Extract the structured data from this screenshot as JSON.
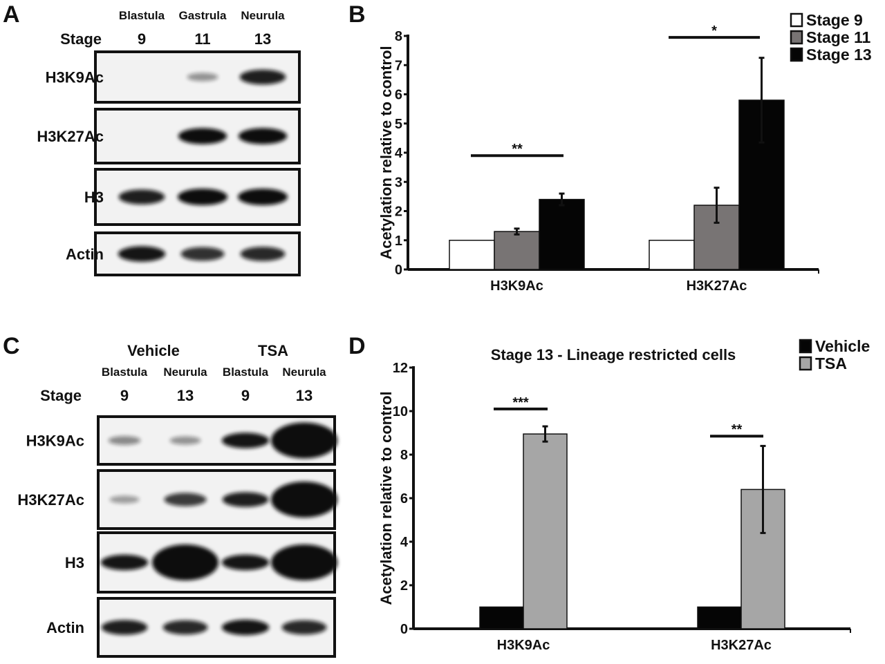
{
  "panels": {
    "a": "A",
    "b": "B",
    "c": "C",
    "d": "D"
  },
  "blot_a": {
    "stage_label": "Stage",
    "lanes": [
      {
        "phase": "Blastula",
        "stage": "9"
      },
      {
        "phase": "Gastrula",
        "stage": "11"
      },
      {
        "phase": "Neurula",
        "stage": "13"
      }
    ],
    "rows": [
      {
        "label": "H3K9Ac",
        "bands": [
          0,
          0.25,
          0.85
        ]
      },
      {
        "label": "H3K27Ac",
        "bands": [
          0,
          0.95,
          0.95
        ]
      },
      {
        "label": "H3",
        "bands": [
          0.85,
          1,
          1
        ]
      },
      {
        "label": "Actin",
        "bands": [
          0.9,
          0.75,
          0.8
        ]
      }
    ]
  },
  "blot_c": {
    "stage_label": "Stage",
    "groups": [
      "Vehicle",
      "TSA"
    ],
    "lanes": [
      {
        "phase": "Blastula",
        "stage": "9"
      },
      {
        "phase": "Neurula",
        "stage": "13"
      },
      {
        "phase": "Blastula",
        "stage": "9"
      },
      {
        "phase": "Neurula",
        "stage": "13"
      }
    ],
    "rows": [
      {
        "label": "H3K9Ac",
        "bands": [
          0.3,
          0.25,
          0.9,
          1.3
        ]
      },
      {
        "label": "H3K27Ac",
        "bands": [
          0.2,
          0.7,
          0.85,
          1.3
        ]
      },
      {
        "label": "H3",
        "bands": [
          0.9,
          1.1,
          0.9,
          1.3
        ]
      },
      {
        "label": "Actin",
        "bands": [
          0.85,
          0.8,
          0.9,
          0.8
        ]
      }
    ]
  },
  "chart_data": [
    {
      "type": "bar",
      "title": "",
      "xlabel": "",
      "ylabel": "Acetylation relative to control",
      "ylim": [
        0,
        8
      ],
      "yticks": [
        "0",
        "1",
        "2",
        "3",
        "4",
        "5",
        "6",
        "7",
        "8"
      ],
      "categories": [
        "H3K9Ac",
        "H3K27Ac"
      ],
      "legend_position": "top-right",
      "series": [
        {
          "name": "Stage 9",
          "color": "#ffffff",
          "values": [
            1,
            1
          ],
          "errors": [
            0,
            0
          ]
        },
        {
          "name": "Stage 11",
          "color": "#787474",
          "values": [
            1.3,
            2.2
          ],
          "errors": [
            0.1,
            0.6
          ]
        },
        {
          "name": "Stage 13",
          "color": "#050505",
          "values": [
            2.4,
            5.8
          ],
          "errors": [
            0.2,
            1.45
          ]
        }
      ],
      "annotations": [
        {
          "category": "H3K9Ac",
          "text": "**",
          "y": 3.9
        },
        {
          "category": "H3K27Ac",
          "text": "*",
          "y": 7.95
        }
      ]
    },
    {
      "type": "bar",
      "title": "Stage 13 - Lineage restricted cells",
      "xlabel": "",
      "ylabel": "Acetylation relative to control",
      "ylim": [
        0,
        12
      ],
      "yticks": [
        "0",
        "2",
        "4",
        "6",
        "8",
        "10",
        "12"
      ],
      "categories": [
        "H3K9Ac",
        "H3K27Ac"
      ],
      "legend_position": "top-right",
      "series": [
        {
          "name": "Vehicle",
          "color": "#050505",
          "values": [
            1,
            1
          ],
          "errors": [
            0,
            0
          ]
        },
        {
          "name": "TSA",
          "color": "#a6a6a6",
          "values": [
            8.95,
            6.4
          ],
          "errors": [
            0.35,
            2.0
          ]
        }
      ],
      "annotations": [
        {
          "category": "H3K9Ac",
          "text": "***",
          "y": 10.1
        },
        {
          "category": "H3K27Ac",
          "text": "**",
          "y": 8.85
        }
      ]
    }
  ]
}
